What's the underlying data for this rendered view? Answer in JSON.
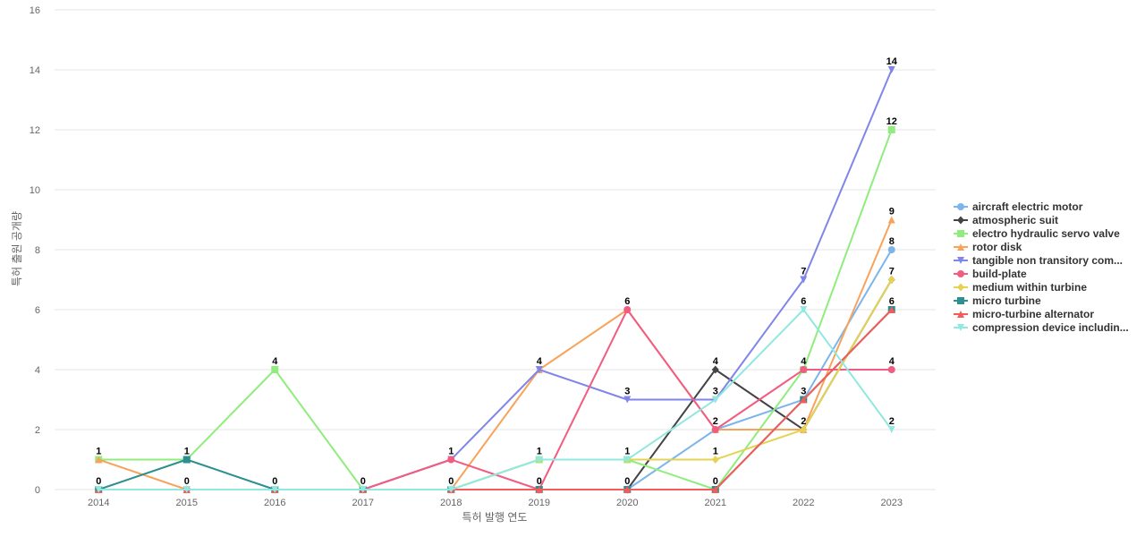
{
  "chart_data": {
    "type": "line",
    "title": "",
    "xlabel": "특허 발행 연도",
    "ylabel": "특허 출원 공개량",
    "x": [
      "2014",
      "2015",
      "2016",
      "2017",
      "2018",
      "2019",
      "2020",
      "2021",
      "2022",
      "2023"
    ],
    "ylim": [
      0,
      16
    ],
    "yticks": [
      0,
      2,
      4,
      6,
      8,
      10,
      12,
      14,
      16
    ],
    "grid": true,
    "legend_position": "right",
    "series": [
      {
        "name": "aircraft electric motor",
        "color": "#7cb5ec",
        "marker": "circle",
        "values": [
          0,
          0,
          0,
          0,
          0,
          0,
          0,
          2,
          3,
          8
        ]
      },
      {
        "name": "atmospheric suit",
        "color": "#434348",
        "marker": "diamond",
        "values": [
          0,
          0,
          0,
          0,
          0,
          0,
          0,
          4,
          2,
          7
        ]
      },
      {
        "name": "electro hydraulic servo valve",
        "color": "#90ed7d",
        "marker": "square",
        "values": [
          1,
          1,
          4,
          0,
          0,
          1,
          1,
          0,
          4,
          12
        ]
      },
      {
        "name": "rotor disk",
        "color": "#f7a35c",
        "marker": "triangle",
        "values": [
          1,
          0,
          0,
          0,
          0,
          4,
          6,
          2,
          2,
          9
        ]
      },
      {
        "name": "tangible non transitory com...",
        "color": "#8085e9",
        "marker": "triangle-down",
        "values": [
          0,
          0,
          0,
          0,
          1,
          4,
          3,
          3,
          7,
          14
        ]
      },
      {
        "name": "build-plate",
        "color": "#f15c80",
        "marker": "circle",
        "values": [
          0,
          0,
          0,
          0,
          1,
          0,
          6,
          2,
          4,
          4
        ]
      },
      {
        "name": "medium within turbine",
        "color": "#e4d354",
        "marker": "diamond",
        "values": [
          0,
          0,
          0,
          0,
          0,
          1,
          1,
          1,
          2,
          7
        ]
      },
      {
        "name": "micro turbine",
        "color": "#2b908f",
        "marker": "square",
        "values": [
          0,
          1,
          0,
          0,
          0,
          0,
          0,
          0,
          3,
          6
        ]
      },
      {
        "name": "micro-turbine alternator",
        "color": "#f45b5b",
        "marker": "triangle",
        "values": [
          0,
          0,
          0,
          0,
          0,
          0,
          0,
          0,
          3,
          6
        ]
      },
      {
        "name": "compression device includin...",
        "color": "#91e8e1",
        "marker": "triangle-down",
        "values": [
          0,
          0,
          0,
          0,
          0,
          1,
          1,
          3,
          6,
          2
        ]
      }
    ],
    "data_labels": [
      {
        "x": "2014",
        "y": 1,
        "text": "1"
      },
      {
        "x": "2014",
        "y": 0,
        "text": "0"
      },
      {
        "x": "2015",
        "y": 1,
        "text": "1"
      },
      {
        "x": "2015",
        "y": 0,
        "text": "0"
      },
      {
        "x": "2016",
        "y": 4,
        "text": "4"
      },
      {
        "x": "2016",
        "y": 0,
        "text": "0"
      },
      {
        "x": "2017",
        "y": 0,
        "text": "0"
      },
      {
        "x": "2018",
        "y": 1,
        "text": "1"
      },
      {
        "x": "2018",
        "y": 0,
        "text": "0"
      },
      {
        "x": "2019",
        "y": 4,
        "text": "4"
      },
      {
        "x": "2019",
        "y": 1,
        "text": "1"
      },
      {
        "x": "2019",
        "y": 0,
        "text": "0"
      },
      {
        "x": "2020",
        "y": 6,
        "text": "6"
      },
      {
        "x": "2020",
        "y": 3,
        "text": "3"
      },
      {
        "x": "2020",
        "y": 1,
        "text": "1"
      },
      {
        "x": "2020",
        "y": 0,
        "text": "0"
      },
      {
        "x": "2021",
        "y": 4,
        "text": "4"
      },
      {
        "x": "2021",
        "y": 3,
        "text": "3"
      },
      {
        "x": "2021",
        "y": 2,
        "text": "2"
      },
      {
        "x": "2021",
        "y": 1,
        "text": "1"
      },
      {
        "x": "2021",
        "y": 0,
        "text": "0"
      },
      {
        "x": "2022",
        "y": 7,
        "text": "7"
      },
      {
        "x": "2022",
        "y": 6,
        "text": "6"
      },
      {
        "x": "2022",
        "y": 4,
        "text": "4"
      },
      {
        "x": "2022",
        "y": 3,
        "text": "3"
      },
      {
        "x": "2022",
        "y": 2,
        "text": "2"
      },
      {
        "x": "2023",
        "y": 14,
        "text": "14"
      },
      {
        "x": "2023",
        "y": 12,
        "text": "12"
      },
      {
        "x": "2023",
        "y": 9,
        "text": "9"
      },
      {
        "x": "2023",
        "y": 8,
        "text": "8"
      },
      {
        "x": "2023",
        "y": 7,
        "text": "7"
      },
      {
        "x": "2023",
        "y": 6,
        "text": "6"
      },
      {
        "x": "2023",
        "y": 4,
        "text": "4"
      },
      {
        "x": "2023",
        "y": 2,
        "text": "2"
      }
    ]
  }
}
